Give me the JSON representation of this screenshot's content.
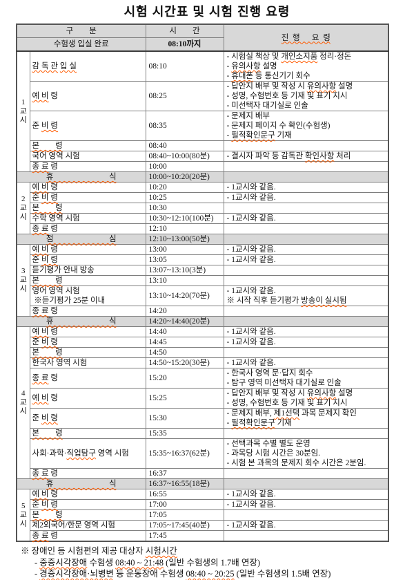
{
  "title": "시험 시간표 및 시험 진행 요령",
  "colors": {
    "header_bg": "#d8d8d8",
    "break_row_bg": "#d8d8d8",
    "spellcheck_underline": "#ff5a00",
    "border": "#7e7e7e"
  },
  "table": {
    "headers": {
      "group": "구        분",
      "time": "시        간",
      "procedure": "«진  행      요  령»",
      "entry_label": "수험생 입실 완료",
      "entry_time": "08:10까지"
    },
    "sections": [
      {
        "type": "period",
        "label": "1교시",
        "rows": [
          {
            "name": "«감 독 관» «입 실»",
            "time": "08:10",
            "notes": [
              "- 시험실 책상 및 «개인소지품» 정리·정돈",
              "- «유의사항» 설명",
              "- «휴대폰» 등 통신기기 회수"
            ]
          },
          {
            "name": "«예 비» 령",
            "time": "08:25",
            "notes": [
              "- 답안지 배부 및 작성 시 «유의사항» 설명",
              "- 성명, 수험번호 등 기재 및 표기 지시",
              "- 미선택자 대기실로 인솔"
            ]
          },
          {
            "name": "준 «비 령»",
            "time": "08:35",
            "notes": [
              "- 문제지 배부",
              "- 문제지 페이지 수 확인(수험생)",
              "- «필적확인문구» 기재"
            ]
          },
          {
            "name": "«본        령»",
            "time": "08:40",
            "notes": []
          },
          {
            "name": "국어 영역 시험",
            "time": "08:40~10:00(80분)",
            "notes": [
              "- 결시자 파악 등 감독관 «확인사항» 처리"
            ]
          },
          {
            "name": "«종 료» 령",
            "time": "10:00",
            "notes": []
          }
        ]
      },
      {
        "type": "break",
        "name": "«휴                            식»",
        "time": "10:00~10:20(20분)"
      },
      {
        "type": "period",
        "label": "2교시",
        "rows": [
          {
            "name": "«예 비» 령",
            "time": "10:20",
            "notes": [
              "- 1교시와 같음."
            ]
          },
          {
            "name": "준 «비 령»",
            "time": "10:25",
            "notes": [
              "- 1교시와 같음."
            ]
          },
          {
            "name": "«본        령»",
            "time": "10:30",
            "notes": []
          },
          {
            "name": "수학 영역 시험",
            "time": "10:30~12:10(100분)",
            "notes": [
              "- 1교시와 같음."
            ]
          },
          {
            "name": "«종 료» 령",
            "time": "12:10",
            "notes": []
          }
        ]
      },
      {
        "type": "break",
        "name": "«점                            심»",
        "time": "12:10~13:00(50분)"
      },
      {
        "type": "period",
        "label": "3교시",
        "rows": [
          {
            "name": "«예 비» 령",
            "time": "13:00",
            "notes": [
              "- 1교시와 같음."
            ]
          },
          {
            "name": "준 «비 령»",
            "time": "13:05",
            "notes": [
              "- 1교시와 같음."
            ]
          },
          {
            "name": "듣기평가 안내 방송",
            "time": "13:07~13:10(3분)",
            "notes": []
          },
          {
            "name": "«본        령»",
            "time": "13:10",
            "notes": []
          },
          {
            "name": "영어 영역 시험",
            "name2": " ※듣기평가 25분 이내",
            "time": "13:10~14:20(70분)",
            "notes": [
              "- 1교시와 같음.",
              "※ 시작 직후 듣기평가 «방송이 실시됨»"
            ]
          },
          {
            "name": "«종 료» 령",
            "time": "14:20",
            "notes": []
          }
        ]
      },
      {
        "type": "break",
        "name": "«휴                            식»",
        "time": "14:20~14:40(20분)"
      },
      {
        "type": "period",
        "label": "4교시",
        "rows": [
          {
            "name": "«예 비» 령",
            "time": "14:40",
            "notes": [
              "- 1교시와 같음."
            ]
          },
          {
            "name": "준 «비 령»",
            "time": "14:45",
            "notes": [
              "- 1교시와 같음."
            ]
          },
          {
            "name": "«본        령»",
            "time": "14:50",
            "notes": []
          },
          {
            "name": "한국사 영역 시험",
            "time": "14:50~15:20(30분)",
            "notes": [
              "- 1교시와 같음."
            ]
          },
          {
            "name": "«종 료» 령",
            "time": "15:20",
            "notes": [
              "- 한국사 영역 문·답지 회수",
              "- 탐구 영역 미선택자 대기실로 인솔"
            ]
          },
          {
            "name": "«예 비» 령",
            "time": "15:25",
            "notes": [
              "- 답안지 배부 및 작성 시 «유의사항» 설명",
              "- 성명, 수험번호 등 기재 및 표기 지시"
            ]
          },
          {
            "name": "준 «비 령»",
            "time": "15:30",
            "notes": [
              "- 문제지 배부, «제1선택» 과목 문제지 확인",
              "- «필적확인문구» 기재"
            ]
          },
          {
            "name": "«본        령»",
            "time": "15:35",
            "notes": []
          },
          {
            "name": "사회·과학·«직업탐구» 영역 시험",
            "time": "15:35~16:37(62분)",
            "notes": [
              "- 선택과목 수별 별도 운영",
              "- 과목당 시험 시간은 30분임.",
              "- 시험 본 과목의 문제지 회수 시간은 2분임."
            ]
          },
          {
            "name": "«종 료» 령",
            "time": "16:37",
            "notes": []
          }
        ]
      },
      {
        "type": "break",
        "name": "«휴                            식»",
        "time": "16:37~16:55(18분)"
      },
      {
        "type": "period",
        "label": "5교시",
        "rows": [
          {
            "name": "«예 비» 령",
            "time": "16:55",
            "notes": [
              "- 1교시와 같음."
            ]
          },
          {
            "name": "준 «비 령»",
            "time": "17:00",
            "notes": [
              "- 1교시와 같음."
            ]
          },
          {
            "name": "«본        령»",
            "time": "17:05",
            "notes": []
          },
          {
            "name": "제2외국어/한문 영역 시험",
            "time": "17:05~17:45(40분)",
            "notes": [
              "- 1교시와 같음."
            ]
          },
          {
            "name": "«종 료» 령",
            "time": "17:45",
            "notes": []
          }
        ]
      }
    ]
  },
  "footer": {
    "heading": "※ 장애인 등 시험편의 제공 대상자 «시험시간»",
    "lines": [
      "- «중증시각장애» 수험생 «08:40 ~ 21:48» (일반 수험생의 1.7배 연장)",
      "- «경증시각장애·뇌병변» 등 운동장애 수험생 «08:40 ~ 20:25» (일반 수험생의 1.5배 연장)"
    ]
  }
}
